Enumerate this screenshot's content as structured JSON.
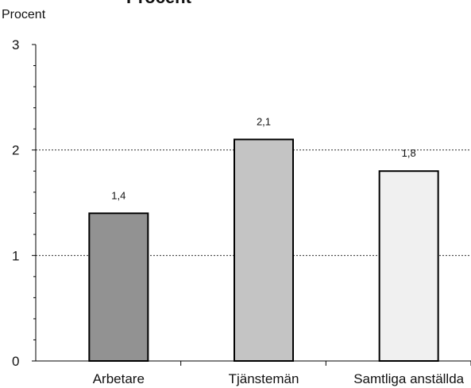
{
  "chart_data": {
    "type": "bar",
    "title": "Procent",
    "ylabel": "Procent",
    "xlabel": "",
    "categories": [
      "Arbetare",
      "Tjänstemän",
      "Samtliga anställda"
    ],
    "values": [
      1.4,
      2.1,
      1.8
    ],
    "data_labels": [
      "1,4",
      "2,1",
      "1,8"
    ],
    "bar_colors": [
      "#929292",
      "#c4c4c4",
      "#f0f0f0"
    ],
    "bar_stroke": "#000000",
    "ylim": [
      0,
      3
    ],
    "yticks": [
      0,
      1,
      2,
      3
    ],
    "ytick_labels": [
      "0",
      "1",
      "2",
      "3"
    ],
    "grid": "dotted horizontal",
    "legend": "none"
  }
}
